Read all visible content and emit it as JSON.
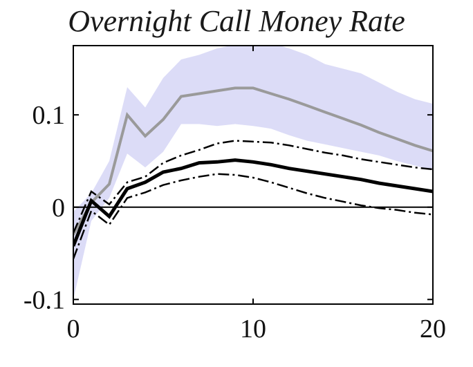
{
  "chart_data": {
    "type": "line",
    "title": "Overnight Call Money Rate",
    "xlabel": "",
    "ylabel": "",
    "xlim": [
      0,
      20
    ],
    "ylim": [
      -0.105,
      0.175
    ],
    "x_ticks": [
      0,
      10,
      20
    ],
    "x_tick_labels": [
      "0",
      "10",
      "20"
    ],
    "y_ticks": [
      0.1,
      0,
      -0.1
    ],
    "y_tick_labels": [
      "0.1",
      "0",
      "-0.1"
    ],
    "grid": false,
    "zero_line": true,
    "x": [
      0,
      1,
      2,
      3,
      4,
      5,
      6,
      7,
      8,
      9,
      10,
      11,
      12,
      13,
      14,
      15,
      16,
      17,
      18,
      19,
      20
    ],
    "band": {
      "color": "#dcdcf7",
      "upper": [
        -0.005,
        0.015,
        0.05,
        0.13,
        0.108,
        0.14,
        0.16,
        0.165,
        0.172,
        0.176,
        0.178,
        0.178,
        0.172,
        0.165,
        0.155,
        0.15,
        0.145,
        0.135,
        0.125,
        0.117,
        0.112
      ],
      "lower": [
        -0.1,
        -0.015,
        0.01,
        0.058,
        0.043,
        0.06,
        0.09,
        0.09,
        0.088,
        0.09,
        0.088,
        0.085,
        0.078,
        0.072,
        0.068,
        0.064,
        0.06,
        0.056,
        0.05,
        0.045,
        0.04
      ]
    },
    "series": [
      {
        "style": "solid-gray",
        "color": "#9a9a9a",
        "values": [
          -0.03,
          0.005,
          0.025,
          0.1,
          0.077,
          0.095,
          0.12,
          0.123,
          0.126,
          0.129,
          0.129,
          0.123,
          0.117,
          0.11,
          0.103,
          0.096,
          0.089,
          0.081,
          0.074,
          0.067,
          0.061
        ]
      },
      {
        "style": "solid-black",
        "color": "#000000",
        "values": [
          -0.042,
          0.007,
          -0.01,
          0.02,
          0.027,
          0.038,
          0.042,
          0.048,
          0.049,
          0.051,
          0.049,
          0.046,
          0.042,
          0.039,
          0.036,
          0.033,
          0.03,
          0.026,
          0.023,
          0.02,
          0.017
        ]
      },
      {
        "style": "dashdot-upper",
        "color": "#000000",
        "values": [
          -0.028,
          0.017,
          0.003,
          0.027,
          0.033,
          0.048,
          0.056,
          0.062,
          0.069,
          0.072,
          0.071,
          0.07,
          0.067,
          0.063,
          0.059,
          0.056,
          0.052,
          0.049,
          0.046,
          0.043,
          0.041
        ]
      },
      {
        "style": "dashdot-lower",
        "color": "#000000",
        "values": [
          -0.056,
          -0.004,
          -0.019,
          0.01,
          0.016,
          0.024,
          0.029,
          0.033,
          0.036,
          0.035,
          0.032,
          0.027,
          0.021,
          0.015,
          0.01,
          0.006,
          0.002,
          -0.001,
          -0.003,
          -0.006,
          -0.008
        ]
      }
    ]
  }
}
